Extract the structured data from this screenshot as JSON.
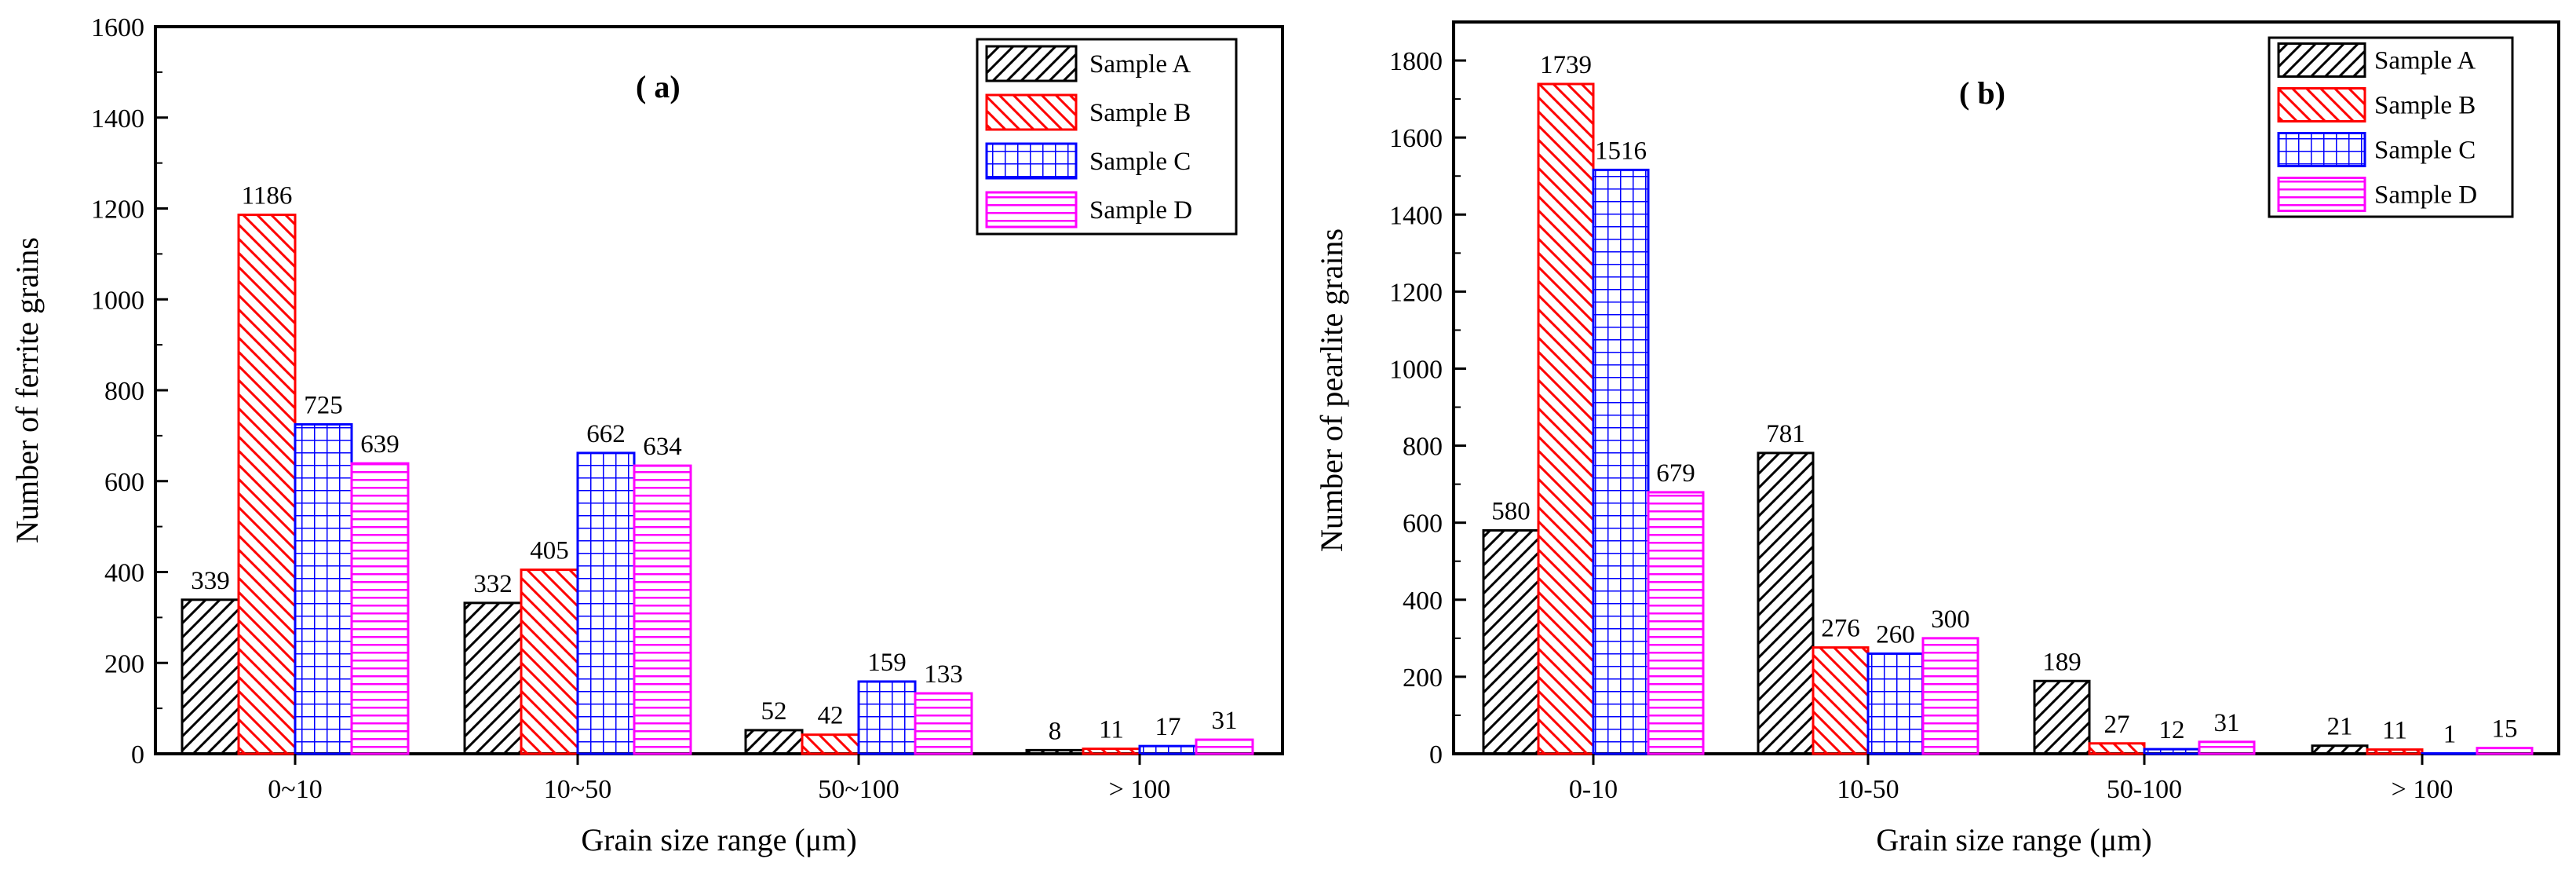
{
  "chart_data": [
    {
      "type": "bar",
      "panel_label": "( a)",
      "categories": [
        "0~10",
        "10~50",
        "50~100",
        "> 100"
      ],
      "series": [
        {
          "name": "Sample A",
          "values": [
            339,
            332,
            52,
            8
          ],
          "color": "#000000",
          "pattern": "diagonal-back"
        },
        {
          "name": "Sample B",
          "values": [
            1186,
            405,
            42,
            11
          ],
          "color": "#ff0000",
          "pattern": "diagonal-forward"
        },
        {
          "name": "Sample C",
          "values": [
            725,
            662,
            159,
            17
          ],
          "color": "#0000ff",
          "pattern": "grid"
        },
        {
          "name": "Sample D",
          "values": [
            639,
            634,
            133,
            31
          ],
          "color": "#ff00ff",
          "pattern": "horizontal"
        }
      ],
      "xlabel": "Grain size range (μm)",
      "ylabel": "Number of ferrite grains",
      "ylim": [
        0,
        1600
      ],
      "yticks": [
        0,
        200,
        400,
        600,
        800,
        1000,
        1200,
        1400,
        1600
      ],
      "legend_position": "top-right"
    },
    {
      "type": "bar",
      "panel_label": "( b)",
      "categories": [
        "0-10",
        "10-50",
        "50-100",
        "> 100"
      ],
      "series": [
        {
          "name": "Sample A",
          "values": [
            580,
            781,
            189,
            21
          ],
          "color": "#000000",
          "pattern": "diagonal-back"
        },
        {
          "name": "Sample B",
          "values": [
            1739,
            276,
            27,
            11
          ],
          "color": "#ff0000",
          "pattern": "diagonal-forward"
        },
        {
          "name": "Sample C",
          "values": [
            1516,
            260,
            12,
            1
          ],
          "color": "#0000ff",
          "pattern": "grid"
        },
        {
          "name": "Sample D",
          "values": [
            679,
            300,
            31,
            15
          ],
          "color": "#ff00ff",
          "pattern": "horizontal"
        }
      ],
      "xlabel": "Grain size range (μm)",
      "ylabel": "Number of pearlite grains",
      "ylim": [
        0,
        1900
      ],
      "yticks": [
        0,
        200,
        400,
        600,
        800,
        1000,
        1200,
        1400,
        1600,
        1800
      ],
      "legend_position": "top-right"
    }
  ]
}
